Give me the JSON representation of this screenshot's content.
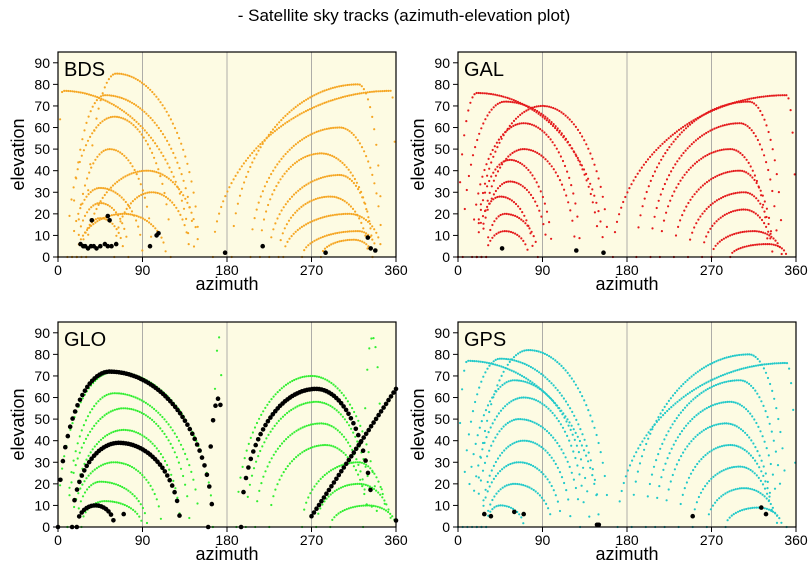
{
  "figure_title": "- Satellite sky tracks (azimuth-elevation plot)",
  "chart_data": [
    {
      "type": "scatter",
      "title": "BDS",
      "xlabel": "azimuth",
      "ylabel": "elevation",
      "xlim": [
        0,
        360
      ],
      "ylim": [
        0,
        95
      ],
      "xticks": [
        0,
        90,
        180,
        270,
        360
      ],
      "yticks": [
        0,
        10,
        20,
        30,
        40,
        50,
        60,
        70,
        80,
        90
      ],
      "grid_x": [
        90,
        180,
        270
      ],
      "background": "#fdfbe3",
      "track_color": "#f5a623",
      "current_color": "#000000",
      "tracks": [
        {
          "az0": 0,
          "az1": 140,
          "peak_az": 5,
          "peak_el": 77
        },
        {
          "az0": 15,
          "az1": 145,
          "peak_az": 50,
          "peak_el": 75
        },
        {
          "az0": 30,
          "az1": 150,
          "peak_az": 62,
          "peak_el": 85
        },
        {
          "az0": 10,
          "az1": 120,
          "peak_az": 60,
          "peak_el": 65
        },
        {
          "az0": 20,
          "az1": 100,
          "peak_az": 55,
          "peak_el": 50
        },
        {
          "az0": 30,
          "az1": 150,
          "peak_az": 95,
          "peak_el": 40
        },
        {
          "az0": 60,
          "az1": 140,
          "peak_az": 100,
          "peak_el": 30
        },
        {
          "az0": 15,
          "az1": 90,
          "peak_az": 45,
          "peak_el": 32
        },
        {
          "az0": 20,
          "az1": 75,
          "peak_az": 45,
          "peak_el": 25
        },
        {
          "az0": 25,
          "az1": 70,
          "peak_az": 45,
          "peak_el": 18
        },
        {
          "az0": 20,
          "az1": 115,
          "peak_az": 70,
          "peak_el": 20
        },
        {
          "az0": 165,
          "az1": 360,
          "peak_az": 355,
          "peak_el": 77
        },
        {
          "az0": 185,
          "az1": 345,
          "peak_az": 320,
          "peak_el": 80
        },
        {
          "az0": 205,
          "az1": 345,
          "peak_az": 300,
          "peak_el": 60
        },
        {
          "az0": 215,
          "az1": 335,
          "peak_az": 280,
          "peak_el": 48
        },
        {
          "az0": 225,
          "az1": 335,
          "peak_az": 300,
          "peak_el": 38
        },
        {
          "az0": 235,
          "az1": 330,
          "peak_az": 290,
          "peak_el": 28
        },
        {
          "az0": 240,
          "az1": 345,
          "peak_az": 310,
          "peak_el": 20
        },
        {
          "az0": 260,
          "az1": 340,
          "peak_az": 320,
          "peak_el": 12
        },
        {
          "az0": 280,
          "az1": 335,
          "peak_az": 315,
          "peak_el": 8
        }
      ],
      "current_points": [
        [
          24,
          6
        ],
        [
          27,
          5
        ],
        [
          29,
          5
        ],
        [
          32,
          4
        ],
        [
          35,
          5
        ],
        [
          38,
          5
        ],
        [
          41,
          4
        ],
        [
          45,
          5
        ],
        [
          50,
          6
        ],
        [
          53,
          5
        ],
        [
          57,
          5
        ],
        [
          62,
          6
        ],
        [
          36,
          17
        ],
        [
          53,
          19
        ],
        [
          55,
          17
        ],
        [
          105,
          10
        ],
        [
          107,
          11
        ],
        [
          98,
          5
        ],
        [
          178,
          2
        ],
        [
          218,
          5
        ],
        [
          285,
          2
        ],
        [
          330,
          9
        ],
        [
          333,
          4
        ],
        [
          338,
          3
        ]
      ]
    },
    {
      "type": "scatter",
      "title": "GAL",
      "xlabel": "azimuth",
      "ylabel": "elevation",
      "xlim": [
        0,
        360
      ],
      "ylim": [
        0,
        95
      ],
      "xticks": [
        0,
        90,
        180,
        270,
        360
      ],
      "yticks": [
        0,
        10,
        20,
        30,
        40,
        50,
        60,
        70,
        80,
        90
      ],
      "grid_x": [
        90,
        180,
        270
      ],
      "background": "#fdfbe3",
      "track_color": "#e41a1c",
      "current_color": "#000000",
      "tracks": [
        {
          "az0": 0,
          "az1": 155,
          "peak_az": 20,
          "peak_el": 76
        },
        {
          "az0": 5,
          "az1": 150,
          "peak_az": 50,
          "peak_el": 72
        },
        {
          "az0": 20,
          "az1": 160,
          "peak_az": 90,
          "peak_el": 70
        },
        {
          "az0": 15,
          "az1": 130,
          "peak_az": 70,
          "peak_el": 62
        },
        {
          "az0": 25,
          "az1": 125,
          "peak_az": 70,
          "peak_el": 50
        },
        {
          "az0": 20,
          "az1": 100,
          "peak_az": 55,
          "peak_el": 45
        },
        {
          "az0": 25,
          "az1": 95,
          "peak_az": 55,
          "peak_el": 35
        },
        {
          "az0": 20,
          "az1": 80,
          "peak_az": 45,
          "peak_el": 28
        },
        {
          "az0": 30,
          "az1": 85,
          "peak_az": 50,
          "peak_el": 20
        },
        {
          "az0": 30,
          "az1": 75,
          "peak_az": 50,
          "peak_el": 12
        },
        {
          "az0": 165,
          "az1": 360,
          "peak_az": 350,
          "peak_el": 75
        },
        {
          "az0": 190,
          "az1": 345,
          "peak_az": 310,
          "peak_el": 72
        },
        {
          "az0": 205,
          "az1": 340,
          "peak_az": 300,
          "peak_el": 62
        },
        {
          "az0": 215,
          "az1": 330,
          "peak_az": 290,
          "peak_el": 50
        },
        {
          "az0": 230,
          "az1": 335,
          "peak_az": 300,
          "peak_el": 40
        },
        {
          "az0": 245,
          "az1": 335,
          "peak_az": 305,
          "peak_el": 30
        },
        {
          "az0": 260,
          "az1": 335,
          "peak_az": 305,
          "peak_el": 22
        },
        {
          "az0": 270,
          "az1": 345,
          "peak_az": 315,
          "peak_el": 12
        },
        {
          "az0": 290,
          "az1": 350,
          "peak_az": 330,
          "peak_el": 6
        }
      ],
      "current_points": [
        [
          47,
          4
        ],
        [
          126,
          3
        ],
        [
          155,
          2
        ]
      ]
    },
    {
      "type": "scatter",
      "title": "GLO",
      "xlabel": "azimuth",
      "ylabel": "elevation",
      "xlim": [
        0,
        360
      ],
      "ylim": [
        0,
        95
      ],
      "xticks": [
        0,
        90,
        180,
        270,
        360
      ],
      "yticks": [
        0,
        10,
        20,
        30,
        40,
        50,
        60,
        70,
        80,
        90
      ],
      "grid_x": [
        90,
        180,
        270
      ],
      "background": "#fdfbe3",
      "track_color": "#33ee33",
      "current_color": "#000000",
      "tracks": [
        {
          "az0": 0,
          "az1": 165,
          "peak_az": 60,
          "peak_el": 72
        },
        {
          "az0": 10,
          "az1": 150,
          "peak_az": 60,
          "peak_el": 62
        },
        {
          "az0": 10,
          "az1": 140,
          "peak_az": 70,
          "peak_el": 55
        },
        {
          "az0": 15,
          "az1": 130,
          "peak_az": 70,
          "peak_el": 45
        },
        {
          "az0": 15,
          "az1": 110,
          "peak_az": 60,
          "peak_el": 30
        },
        {
          "az0": 20,
          "az1": 95,
          "peak_az": 45,
          "peak_el": 21
        },
        {
          "az0": 25,
          "az1": 90,
          "peak_az": 50,
          "peak_el": 12
        },
        {
          "az0": 165,
          "az1": 175,
          "peak_az": 172,
          "peak_el": 88
        },
        {
          "az0": 190,
          "az1": 340,
          "peak_az": 270,
          "peak_el": 70
        },
        {
          "az0": 200,
          "az1": 335,
          "peak_az": 275,
          "peak_el": 58
        },
        {
          "az0": 210,
          "az1": 330,
          "peak_az": 280,
          "peak_el": 48
        },
        {
          "az0": 225,
          "az1": 330,
          "peak_az": 285,
          "peak_el": 38
        },
        {
          "az0": 260,
          "az1": 350,
          "peak_az": 320,
          "peak_el": 30
        },
        {
          "az0": 275,
          "az1": 355,
          "peak_az": 320,
          "peak_el": 20
        },
        {
          "az0": 290,
          "az1": 360,
          "peak_az": 330,
          "peak_el": 10
        },
        {
          "az0": 325,
          "az1": 345,
          "peak_az": 335,
          "peak_el": 88
        }
      ],
      "current_tracks": [
        {
          "az0": 0,
          "az1": 165,
          "peak_az": 55,
          "peak_el": 72
        },
        {
          "az0": 15,
          "az1": 130,
          "peak_az": 65,
          "peak_el": 39
        },
        {
          "az0": 20,
          "az1": 60,
          "peak_az": 40,
          "peak_el": 10
        },
        {
          "az0": 160,
          "az1": 175,
          "peak_az": 172,
          "peak_el": 60
        },
        {
          "az0": 195,
          "az1": 335,
          "peak_az": 275,
          "peak_el": 64
        }
      ],
      "current_lines": [
        [
          [
            270,
            5
          ],
          [
            360,
            64
          ]
        ]
      ],
      "current_points": [
        [
          70,
          6
        ],
        [
          360,
          3
        ]
      ]
    },
    {
      "type": "scatter",
      "title": "GPS",
      "xlabel": "azimuth",
      "ylabel": "elevation",
      "xlim": [
        0,
        360
      ],
      "ylim": [
        0,
        95
      ],
      "xticks": [
        0,
        90,
        180,
        270,
        360
      ],
      "yticks": [
        0,
        10,
        20,
        30,
        40,
        50,
        60,
        70,
        80,
        90
      ],
      "grid_x": [
        90,
        180,
        270
      ],
      "background": "#fdfbe3",
      "track_color": "#22c9c9",
      "current_color": "#000000",
      "tracks": [
        {
          "az0": 0,
          "az1": 150,
          "peak_az": 10,
          "peak_el": 77
        },
        {
          "az0": 5,
          "az1": 150,
          "peak_az": 45,
          "peak_el": 78
        },
        {
          "az0": 20,
          "az1": 160,
          "peak_az": 75,
          "peak_el": 82
        },
        {
          "az0": 10,
          "az1": 140,
          "peak_az": 60,
          "peak_el": 68
        },
        {
          "az0": 15,
          "az1": 135,
          "peak_az": 70,
          "peak_el": 60
        },
        {
          "az0": 20,
          "az1": 130,
          "peak_az": 65,
          "peak_el": 50
        },
        {
          "az0": 25,
          "az1": 120,
          "peak_az": 70,
          "peak_el": 40
        },
        {
          "az0": 25,
          "az1": 110,
          "peak_az": 65,
          "peak_el": 30
        },
        {
          "az0": 30,
          "az1": 100,
          "peak_az": 60,
          "peak_el": 20
        },
        {
          "az0": 30,
          "az1": 70,
          "peak_az": 45,
          "peak_el": 10
        },
        {
          "az0": 170,
          "az1": 360,
          "peak_az": 350,
          "peak_el": 76
        },
        {
          "az0": 185,
          "az1": 350,
          "peak_az": 310,
          "peak_el": 80
        },
        {
          "az0": 200,
          "az1": 345,
          "peak_az": 300,
          "peak_el": 68
        },
        {
          "az0": 210,
          "az1": 340,
          "peak_az": 290,
          "peak_el": 58
        },
        {
          "az0": 220,
          "az1": 335,
          "peak_az": 285,
          "peak_el": 48
        },
        {
          "az0": 235,
          "az1": 335,
          "peak_az": 290,
          "peak_el": 38
        },
        {
          "az0": 250,
          "az1": 335,
          "peak_az": 300,
          "peak_el": 28
        },
        {
          "az0": 265,
          "az1": 340,
          "peak_az": 305,
          "peak_el": 18
        },
        {
          "az0": 285,
          "az1": 345,
          "peak_az": 320,
          "peak_el": 9
        }
      ],
      "current_points": [
        [
          28,
          6
        ],
        [
          35,
          5
        ],
        [
          60,
          7
        ],
        [
          70,
          6
        ],
        [
          148,
          1
        ],
        [
          150,
          1
        ],
        [
          250,
          5
        ],
        [
          323,
          9
        ],
        [
          328,
          6
        ]
      ]
    }
  ]
}
